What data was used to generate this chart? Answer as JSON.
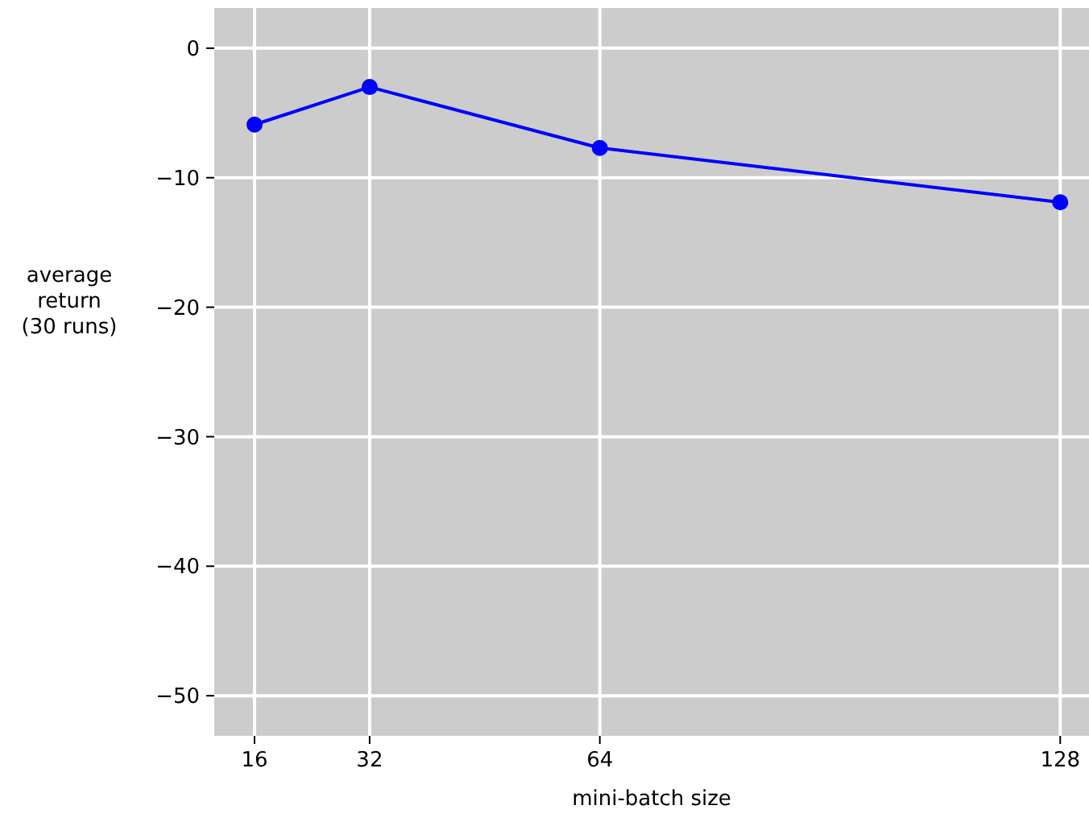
{
  "chart_data": {
    "type": "line",
    "xlabel": "mini-batch size",
    "ylabel": "average\nreturn\n(30 runs)",
    "x": [
      16,
      32,
      64,
      128
    ],
    "series": [
      {
        "color": "#0000ff",
        "values": [
          -5.9,
          -3.0,
          -7.7,
          -11.9
        ]
      }
    ],
    "xlim": [
      10.4,
      132
    ],
    "ylim": [
      -53.1,
      3.1
    ],
    "xticks": [
      16,
      32,
      64,
      128
    ],
    "yticks": [
      0,
      -10,
      -20,
      -30,
      -40,
      -50
    ],
    "grid": true,
    "marker": "circle",
    "line_style": "solid"
  }
}
